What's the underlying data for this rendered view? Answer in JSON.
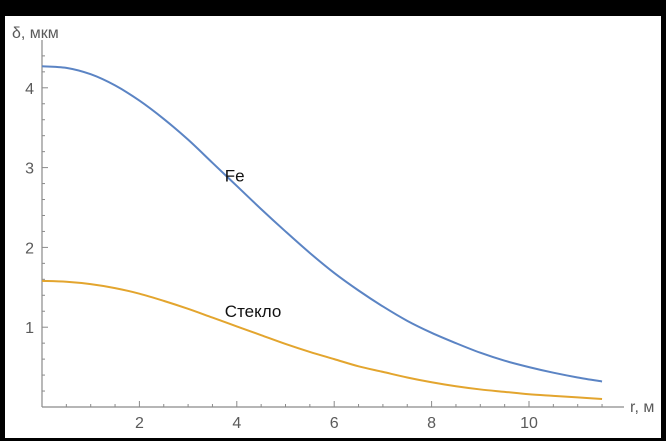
{
  "chart_data": {
    "type": "line",
    "ylabel": "δ, мкм",
    "xlabel": "r, м",
    "xlim": [
      0,
      11.5
    ],
    "ylim": [
      0,
      4.4
    ],
    "xticks_major": [
      2,
      4,
      6,
      8,
      10
    ],
    "yticks_major": [
      1,
      2,
      3,
      4
    ],
    "grid": false,
    "colors": {
      "Fe": "#5b84c4",
      "Стекло": "#e3a52e",
      "axis": "#8a8a8a"
    },
    "series": [
      {
        "name": "Fe",
        "x": [
          0,
          0.5,
          1,
          1.5,
          2,
          2.5,
          3,
          3.5,
          4,
          4.5,
          5,
          5.5,
          6,
          6.5,
          7,
          7.5,
          8,
          8.5,
          9,
          9.5,
          10,
          10.5,
          11,
          11.5
        ],
        "values": [
          4.27,
          4.25,
          4.17,
          4.03,
          3.84,
          3.61,
          3.35,
          3.06,
          2.77,
          2.48,
          2.2,
          1.93,
          1.68,
          1.46,
          1.26,
          1.08,
          0.93,
          0.8,
          0.68,
          0.58,
          0.5,
          0.43,
          0.37,
          0.32
        ]
      },
      {
        "name": "Стекло",
        "x": [
          0,
          0.5,
          1,
          1.5,
          2,
          2.5,
          3,
          3.5,
          4,
          4.5,
          5,
          5.5,
          6,
          6.5,
          7,
          7.5,
          8,
          8.5,
          9,
          9.5,
          10,
          10.5,
          11,
          11.5
        ],
        "values": [
          1.58,
          1.57,
          1.54,
          1.49,
          1.42,
          1.33,
          1.23,
          1.12,
          1.01,
          0.9,
          0.79,
          0.69,
          0.6,
          0.51,
          0.44,
          0.37,
          0.31,
          0.26,
          0.22,
          0.19,
          0.16,
          0.14,
          0.12,
          0.1
        ]
      }
    ],
    "annotations": [
      {
        "text": "Fe",
        "x": 4.0,
        "y": 2.9
      },
      {
        "text": "Стекло",
        "x": 4.0,
        "y": 1.2
      }
    ]
  }
}
